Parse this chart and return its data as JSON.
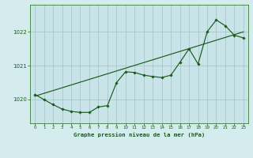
{
  "title": "Graphe pression niveau de la mer (hPa)",
  "background_color": "#d4ecee",
  "plot_bg_color": "#c8e4e8",
  "grid_color": "#a8c8cc",
  "line_color": "#1a5c1a",
  "xlim": [
    -0.5,
    23.5
  ],
  "ylim": [
    1019.3,
    1022.8
  ],
  "yticks": [
    1020,
    1021,
    1022
  ],
  "xticks": [
    0,
    1,
    2,
    3,
    4,
    5,
    6,
    7,
    8,
    9,
    10,
    11,
    12,
    13,
    14,
    15,
    16,
    17,
    18,
    19,
    20,
    21,
    22,
    23
  ],
  "hours": [
    0,
    1,
    2,
    3,
    4,
    5,
    6,
    7,
    8,
    9,
    10,
    11,
    12,
    13,
    14,
    15,
    16,
    17,
    18,
    19,
    20,
    21,
    22,
    23
  ],
  "values": [
    1020.15,
    1020.0,
    1019.85,
    1019.72,
    1019.65,
    1019.62,
    1019.62,
    1019.78,
    1019.82,
    1020.5,
    1020.82,
    1020.8,
    1020.72,
    1020.68,
    1020.65,
    1020.72,
    1021.1,
    1021.5,
    1021.05,
    1022.0,
    1022.35,
    1022.18,
    1021.9,
    1021.82
  ],
  "trend_x": [
    0,
    23
  ],
  "trend_y": [
    1020.1,
    1022.0
  ]
}
